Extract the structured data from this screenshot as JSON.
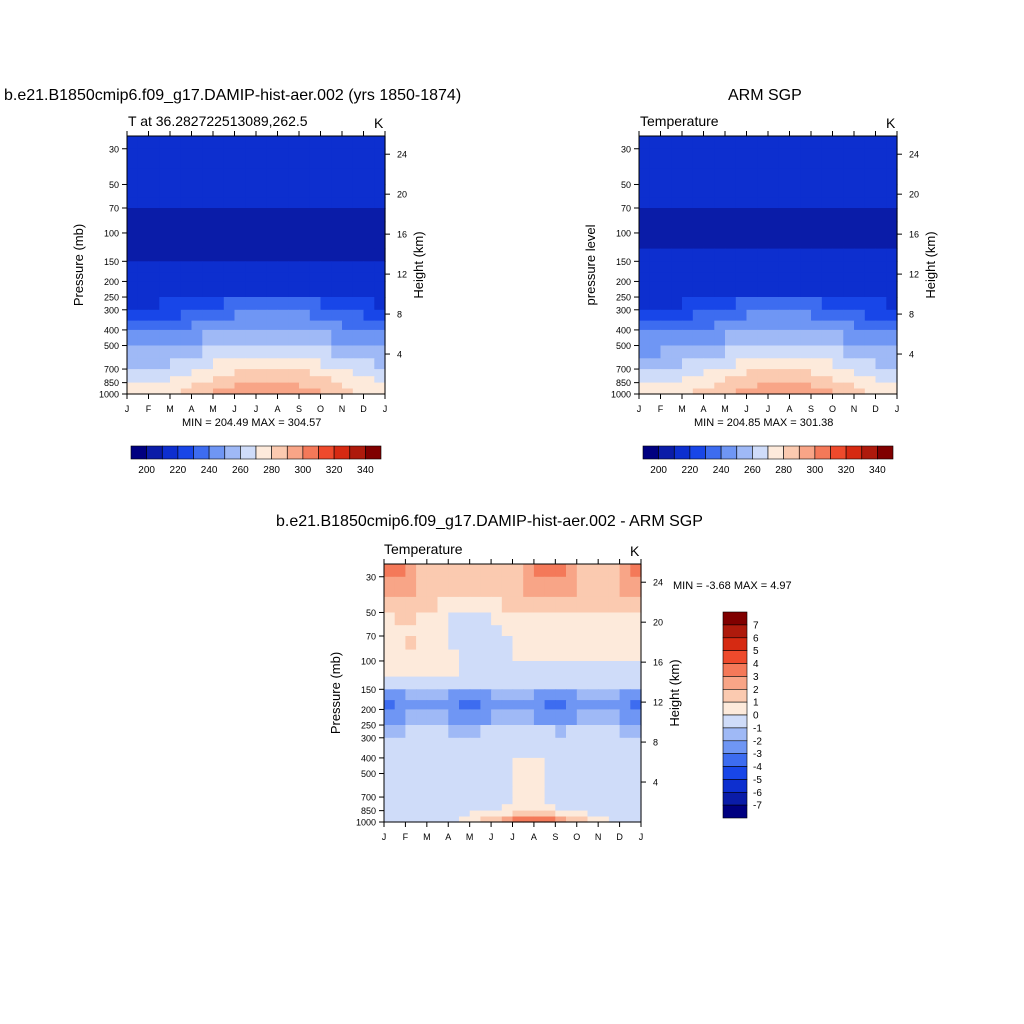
{
  "panels": [
    {
      "title": "b.e21.B1850cmip6.f09_g17.DAMIP-hist-aer.002 (yrs 1850-1874)",
      "left_string": "T at 36.282722513089,262.5",
      "right_string": "K",
      "ylabel_left": "Pressure (mb)",
      "ylabel_right": "Height (km)",
      "minmax": "MIN = 204.49 MAX = 304.57"
    },
    {
      "title": "ARM SGP",
      "left_string": "Temperature",
      "right_string": "K",
      "ylabel_left": "pressure level",
      "ylabel_right": "Height (km)",
      "minmax": "MIN = 204.85 MAX = 301.38"
    },
    {
      "title": "b.e21.B1850cmip6.f09_g17.DAMIP-hist-aer.002 - ARM SGP",
      "left_string": "Temperature",
      "right_string": "K",
      "ylabel_left": "Pressure (mb)",
      "ylabel_right": "Height (km)",
      "minmax": "MIN =  -3.68 MAX =   4.97"
    }
  ],
  "chart_data": [
    {
      "type": "heatmap",
      "title": "b.e21.B1850cmip6.f09_g17.DAMIP-hist-aer.002 (yrs 1850-1874)",
      "xlabel": "",
      "ylabel": "Pressure (mb)",
      "y2label": "Height (km)",
      "x_ticks": [
        "J",
        "F",
        "M",
        "A",
        "M",
        "J",
        "J",
        "A",
        "S",
        "O",
        "N",
        "D",
        "J"
      ],
      "y_ticks": [
        30,
        50,
        70,
        100,
        150,
        200,
        250,
        300,
        400,
        500,
        700,
        850,
        1000
      ],
      "y_scale": "log",
      "ylim": [
        1000,
        25
      ],
      "y2_ticks": [
        4,
        8,
        12,
        16,
        20,
        24
      ],
      "levels": [
        200,
        210,
        220,
        230,
        240,
        250,
        260,
        270,
        280,
        290,
        300,
        310,
        320,
        330,
        340
      ],
      "colorbar_labels": [
        "200",
        "220",
        "240",
        "260",
        "280",
        "300",
        "320",
        "340"
      ],
      "colorbar_colors": [
        "#000080",
        "#0a1ca8",
        "#0d2fcf",
        "#1846e8",
        "#3d6cf0",
        "#6f96f4",
        "#9fb9f6",
        "#cfdcf9",
        "#fdeadb",
        "#fbcab0",
        "#f8a587",
        "#f47959",
        "#ee4a2c",
        "#d62a12",
        "#ae1a0c",
        "#800000"
      ],
      "minmax": "MIN = 204.49 MAX = 304.57"
    },
    {
      "type": "heatmap",
      "title": "ARM SGP",
      "ylabel": "pressure level",
      "y2label": "Height (km)",
      "x_ticks": [
        "J",
        "F",
        "M",
        "A",
        "M",
        "J",
        "J",
        "A",
        "S",
        "O",
        "N",
        "D",
        "J"
      ],
      "y_ticks": [
        30,
        50,
        70,
        100,
        150,
        200,
        250,
        300,
        400,
        500,
        700,
        850,
        1000
      ],
      "y_scale": "log",
      "ylim": [
        1000,
        25
      ],
      "y2_ticks": [
        4,
        8,
        12,
        16,
        20,
        24
      ],
      "levels": [
        200,
        210,
        220,
        230,
        240,
        250,
        260,
        270,
        280,
        290,
        300,
        310,
        320,
        330,
        340
      ],
      "colorbar_labels": [
        "200",
        "220",
        "240",
        "260",
        "280",
        "300",
        "320",
        "340"
      ],
      "minmax": "MIN = 204.85 MAX = 301.38"
    },
    {
      "type": "heatmap",
      "title": "b.e21.B1850cmip6.f09_g17.DAMIP-hist-aer.002 - ARM SGP",
      "ylabel": "Pressure (mb)",
      "y2label": "Height (km)",
      "x_ticks": [
        "J",
        "F",
        "M",
        "A",
        "M",
        "J",
        "J",
        "A",
        "S",
        "O",
        "N",
        "D",
        "J"
      ],
      "y_ticks": [
        30,
        50,
        70,
        100,
        150,
        200,
        250,
        300,
        400,
        500,
        700,
        850,
        1000
      ],
      "y_scale": "log",
      "ylim": [
        1000,
        25
      ],
      "y2_ticks": [
        4,
        8,
        12,
        16,
        20,
        24
      ],
      "levels": [
        -7,
        -6,
        -5,
        -4,
        -3,
        -2,
        -1,
        0,
        1,
        2,
        3,
        4,
        5,
        6,
        7
      ],
      "colorbar_labels": [
        "7",
        "6",
        "5",
        "4",
        "3",
        "2",
        "1",
        "0",
        "-1",
        "-2",
        "-3",
        "-4",
        "-5",
        "-6",
        "-7"
      ],
      "colorbar_colors": [
        "#800000",
        "#ae1a0c",
        "#d62a12",
        "#ee4a2c",
        "#f47959",
        "#f8a587",
        "#fbcab0",
        "#fdeadb",
        "#cfdcf9",
        "#9fb9f6",
        "#6f96f4",
        "#3d6cf0",
        "#1846e8",
        "#0d2fcf",
        "#0a1ca8",
        "#000080"
      ],
      "minmax": "MIN =  -3.68 MAX =   4.97"
    }
  ]
}
